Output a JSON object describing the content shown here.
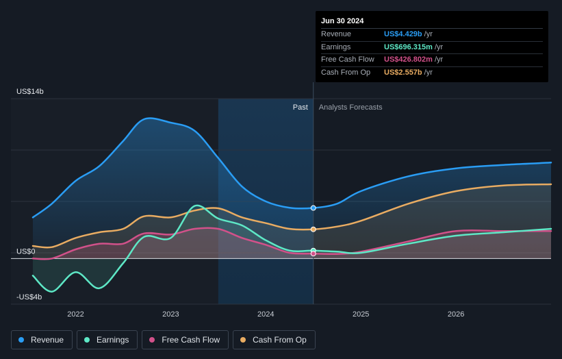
{
  "chart_data": {
    "type": "line",
    "title": "",
    "x": [
      2021.55,
      2021.75,
      2022.0,
      2022.25,
      2022.5,
      2022.72,
      2023.0,
      2023.25,
      2023.5,
      2023.75,
      2024.0,
      2024.25,
      2024.5,
      2024.75,
      2025.0,
      2025.5,
      2026.0,
      2026.5,
      2027.0
    ],
    "series": [
      {
        "name": "Revenue",
        "color": "#2a9df4",
        "values": [
          3.6,
          4.8,
          6.8,
          8.1,
          10.3,
          12.2,
          11.9,
          11.2,
          8.8,
          6.3,
          5.0,
          4.45,
          4.429,
          4.8,
          5.9,
          7.2,
          7.9,
          8.2,
          8.4
        ]
      },
      {
        "name": "Earnings",
        "color": "#5ee8c6",
        "values": [
          -1.5,
          -2.9,
          -1.2,
          -2.6,
          -0.4,
          1.9,
          1.8,
          4.6,
          3.5,
          2.9,
          1.6,
          0.7,
          0.696,
          0.6,
          0.5,
          1.3,
          2.0,
          2.3,
          2.6
        ]
      },
      {
        "name": "Free Cash Flow",
        "color": "#d2518a",
        "values": [
          0.0,
          0.0,
          0.8,
          1.3,
          1.3,
          2.2,
          2.1,
          2.6,
          2.6,
          1.8,
          1.2,
          0.5,
          0.427,
          0.4,
          0.6,
          1.5,
          2.4,
          2.4,
          2.4
        ]
      },
      {
        "name": "Cash From Op",
        "color": "#e9ac62",
        "values": [
          1.1,
          1.0,
          1.8,
          2.3,
          2.6,
          3.7,
          3.6,
          4.2,
          4.4,
          3.6,
          3.1,
          2.6,
          2.557,
          2.8,
          3.3,
          4.8,
          5.9,
          6.4,
          6.5
        ]
      }
    ],
    "ylim": [
      -4,
      14
    ],
    "y_tick_labels": [
      "US$14b",
      "US$0",
      "-US$4b"
    ],
    "x_tick_labels": [
      "2022",
      "2023",
      "2024",
      "2025",
      "2026"
    ],
    "xlim": [
      2021.55,
      2027.0
    ],
    "forecast_start": 2024.5,
    "shade_start": 2023.5,
    "past_label": "Past",
    "forecast_label": "Analysts Forecasts",
    "highlight_x": 2024.5
  },
  "tooltip": {
    "date": "Jun 30 2024",
    "rows": [
      {
        "label": "Revenue",
        "value": "US$4.429b",
        "unit": "/yr",
        "color": "#2a9df4"
      },
      {
        "label": "Earnings",
        "value": "US$696.315m",
        "unit": "/yr",
        "color": "#5ee8c6"
      },
      {
        "label": "Free Cash Flow",
        "value": "US$426.802m",
        "unit": "/yr",
        "color": "#d2518a"
      },
      {
        "label": "Cash From Op",
        "value": "US$2.557b",
        "unit": "/yr",
        "color": "#e9ac62"
      }
    ]
  },
  "legend": [
    {
      "label": "Revenue",
      "color": "#2a9df4"
    },
    {
      "label": "Earnings",
      "color": "#5ee8c6"
    },
    {
      "label": "Free Cash Flow",
      "color": "#d2518a"
    },
    {
      "label": "Cash From Op",
      "color": "#e9ac62"
    }
  ]
}
